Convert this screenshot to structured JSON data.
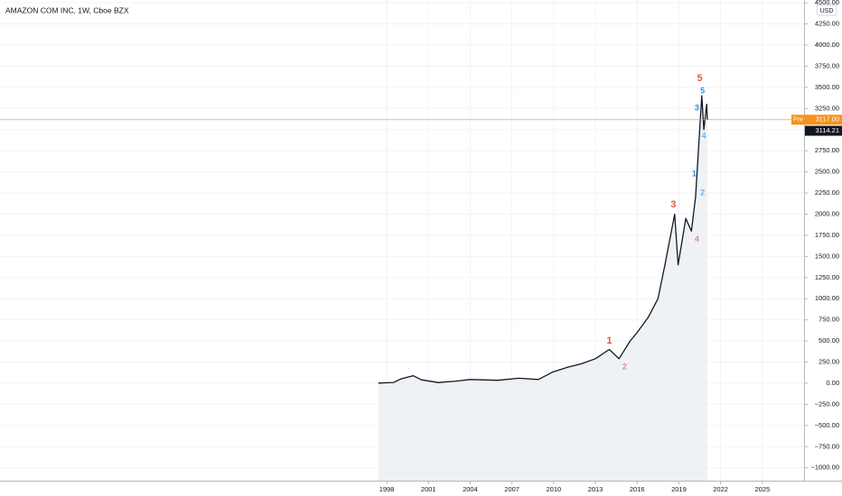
{
  "chart_data": {
    "type": "area",
    "title": "AMAZON COM INC, 1W, Cboe BZX",
    "currency": "USD",
    "color": "#131722",
    "fill": "#eef2f5",
    "x": [
      1997.4,
      1998.5,
      1999.0,
      1999.9,
      2000.5,
      2001.7,
      2003.0,
      2004.0,
      2006.0,
      2007.5,
      2008.9,
      2009.9,
      2011.0,
      2012.0,
      2013.0,
      2014.0,
      2014.7,
      2015.5,
      2016.0,
      2016.8,
      2017.5,
      2018.0,
      2018.7,
      2018.95,
      2019.5,
      2019.9,
      2020.2,
      2020.5,
      2020.65,
      2020.8,
      2021.0,
      2021.05
    ],
    "values": [
      2,
      10,
      50,
      90,
      40,
      8,
      25,
      45,
      35,
      60,
      45,
      130,
      190,
      230,
      290,
      400,
      290,
      500,
      600,
      780,
      1000,
      1400,
      2000,
      1400,
      1950,
      1800,
      2200,
      3000,
      3400,
      3000,
      3300,
      3114.21
    ],
    "xlim": [
      1970.2,
      2028.0
    ],
    "xticks": [
      1998,
      2001,
      2004,
      2007,
      2010,
      2013,
      2016,
      2019,
      2022,
      2025
    ],
    "ylim": [
      -1152,
      4533
    ],
    "yticks": [
      {
        "value": -1000,
        "label": "−1000.00"
      },
      {
        "value": -750,
        "label": "−750.00"
      },
      {
        "value": -500,
        "label": "−500.00"
      },
      {
        "value": -250,
        "label": "−250.00"
      },
      {
        "value": 0,
        "label": "0.00"
      },
      {
        "value": 250,
        "label": "250.00"
      },
      {
        "value": 500,
        "label": "500.00"
      },
      {
        "value": 750,
        "label": "750.00"
      },
      {
        "value": 1000,
        "label": "1000.00"
      },
      {
        "value": 1250,
        "label": "1250.00"
      },
      {
        "value": 1500,
        "label": "1500.00"
      },
      {
        "value": 1750,
        "label": "1750.00"
      },
      {
        "value": 2000,
        "label": "2000.00"
      },
      {
        "value": 2250,
        "label": "2250.00"
      },
      {
        "value": 2500,
        "label": "2500.00"
      },
      {
        "value": 2750,
        "label": "2750.00"
      },
      {
        "value": 3000,
        "label": "3000.00"
      },
      {
        "value": 3250,
        "label": "3250.00"
      },
      {
        "value": 3500,
        "label": "3500.00"
      },
      {
        "value": 3750,
        "label": "3750.00"
      },
      {
        "value": 4000,
        "label": "4000.00"
      },
      {
        "value": 4250,
        "label": "4250.00"
      },
      {
        "value": 4500,
        "label": "4500.00"
      }
    ],
    "grid": true,
    "price_lines": [
      {
        "label": "Pre",
        "value": 3117,
        "value_label": "3117.00",
        "color": "#f7931a"
      },
      {
        "value": 3114.21,
        "value_label": "3114.21",
        "color": "#131722"
      }
    ],
    "annotations": [
      {
        "text": "1",
        "x": 2014.0,
        "y": 500,
        "color": "#e8553b"
      },
      {
        "text": "2",
        "x": 2015.1,
        "y": 190,
        "color": "#ef8a74"
      },
      {
        "text": "3",
        "x": 2018.6,
        "y": 2112,
        "color": "#e8553b"
      },
      {
        "text": "4",
        "x": 2020.3,
        "y": 1700,
        "color": "#ef8a74"
      },
      {
        "text": "5",
        "x": 2020.5,
        "y": 3605,
        "color": "#e8553b"
      },
      {
        "text": "1",
        "x": 2020.1,
        "y": 2475,
        "color": "#2196f3"
      },
      {
        "text": "2",
        "x": 2020.7,
        "y": 2250,
        "color": "#64b5f6"
      },
      {
        "text": "3",
        "x": 2020.3,
        "y": 3250,
        "color": "#2196f3"
      },
      {
        "text": "4",
        "x": 2020.8,
        "y": 2920,
        "color": "#64b5f6"
      },
      {
        "text": "5",
        "x": 2020.7,
        "y": 3455,
        "color": "#2196f3"
      }
    ]
  }
}
